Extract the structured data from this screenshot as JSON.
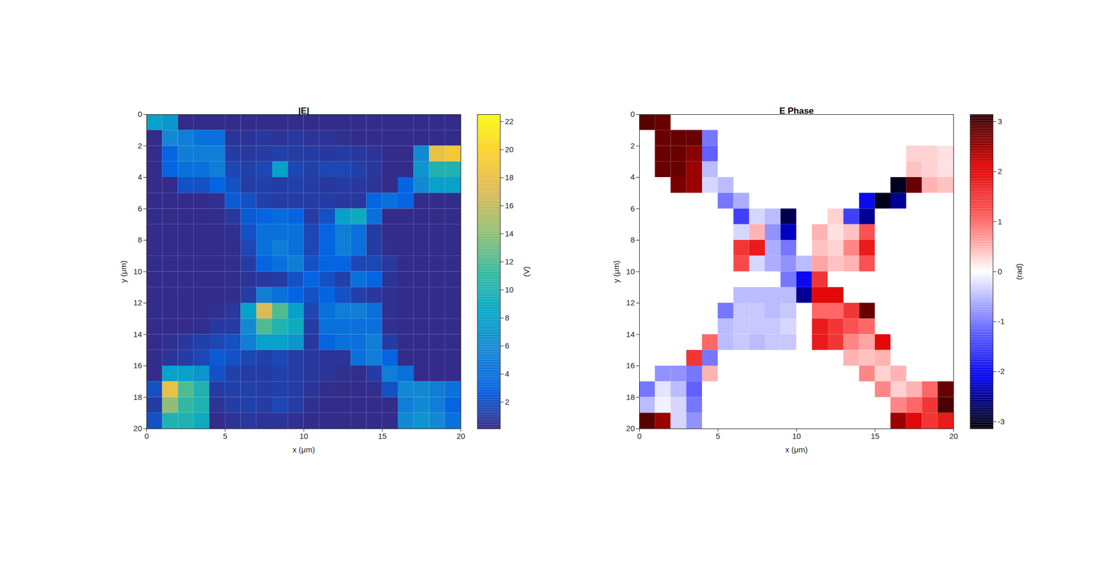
{
  "chart_data": [
    {
      "type": "heatmap",
      "title": "|E|",
      "x_label": "x (μm)",
      "y_label": "y (μm)",
      "xlim": [
        0,
        20
      ],
      "ylim": [
        20,
        0
      ],
      "xticks": [
        0,
        5,
        10,
        15,
        20
      ],
      "yticks": [
        0,
        2,
        4,
        6,
        8,
        10,
        12,
        14,
        16,
        18,
        20
      ],
      "x": [
        0.5,
        1.5,
        2.5,
        3.5,
        4.5,
        5.5,
        6.5,
        7.5,
        8.5,
        9.5,
        10.5,
        11.5,
        12.5,
        13.5,
        14.5,
        15.5,
        16.5,
        17.5,
        18.5,
        19.5
      ],
      "y": [
        0.5,
        1.5,
        2.5,
        3.5,
        4.5,
        5.5,
        6.5,
        7.5,
        8.5,
        9.5,
        10.5,
        11.5,
        12.5,
        13.5,
        14.5,
        15.5,
        16.5,
        17.5,
        18.5,
        19.5
      ],
      "values": [
        [
          8,
          7,
          0.2,
          0.2,
          0.2,
          0.2,
          0.2,
          0.2,
          0.2,
          0.2,
          0.2,
          0.2,
          0.2,
          0.2,
          0.2,
          0.2,
          0.2,
          0.2,
          0.2,
          0.2
        ],
        [
          0.2,
          6,
          5,
          4,
          4,
          0.6,
          0.6,
          0.8,
          0.6,
          0.8,
          0.6,
          0.6,
          0.4,
          0.2,
          0.2,
          0.2,
          0.2,
          0.2,
          0.2,
          0.2
        ],
        [
          0.2,
          3,
          5,
          5,
          5,
          1,
          0.8,
          1,
          1.2,
          1,
          1,
          0.8,
          1,
          0.8,
          0.6,
          0.2,
          0.2,
          6,
          18,
          19
        ],
        [
          0.2,
          3,
          4,
          4,
          5,
          1.5,
          1.2,
          1.5,
          8,
          1.5,
          1.2,
          1.5,
          1.5,
          1.2,
          0.8,
          0.2,
          0.2,
          7,
          10,
          10
        ],
        [
          0.2,
          0.2,
          2,
          2,
          3,
          2,
          1,
          1.2,
          1,
          1.2,
          1,
          0.8,
          1,
          0.8,
          0.6,
          0.2,
          3,
          6,
          8,
          8
        ],
        [
          0.2,
          0.2,
          0.2,
          0.2,
          0.4,
          2.5,
          2,
          1.2,
          1,
          1,
          1,
          1,
          0.8,
          0.8,
          3,
          4,
          3,
          0.2,
          0.2,
          0.2
        ],
        [
          0.2,
          0.2,
          0.2,
          0.2,
          0.3,
          0.8,
          2.5,
          3,
          3.5,
          3,
          1,
          2,
          8,
          9,
          4,
          0.2,
          0.2,
          0.2,
          0.2,
          0.2
        ],
        [
          0.2,
          0.2,
          0.2,
          0.2,
          0.2,
          0.4,
          2,
          4,
          4,
          4,
          1.5,
          3,
          5,
          4,
          1,
          0.2,
          0.2,
          0.2,
          0.2,
          0.2
        ],
        [
          0.2,
          0.2,
          0.2,
          0.2,
          0.2,
          0.3,
          1.5,
          4,
          5,
          4,
          1.5,
          3,
          5,
          4,
          1,
          0.3,
          0.2,
          0.2,
          0.2,
          0.2
        ],
        [
          0.2,
          0.2,
          0.2,
          0.2,
          0.2,
          0.3,
          1,
          3,
          4,
          5,
          2,
          3,
          3,
          1.5,
          1.5,
          0.8,
          0.2,
          0.2,
          0.2,
          0.2
        ],
        [
          0.2,
          0.2,
          0.2,
          0.2,
          0.2,
          0.3,
          0.6,
          0.8,
          1,
          2,
          3,
          2,
          1.2,
          4,
          3,
          0.6,
          0.2,
          0.2,
          0.2,
          0.2
        ],
        [
          0.2,
          0.2,
          0.2,
          0.2,
          0.2,
          0.3,
          1,
          5,
          4,
          3,
          2,
          3,
          2,
          1.2,
          0.8,
          0.4,
          0.2,
          0.2,
          0.2,
          0.2
        ],
        [
          0.2,
          0.2,
          0.2,
          0.2,
          0.4,
          0.8,
          8,
          17,
          12,
          8,
          1.5,
          4,
          5,
          5,
          4,
          0.4,
          0.2,
          0.2,
          0.2,
          0.2
        ],
        [
          0.2,
          0.2,
          0.2,
          0.3,
          0.8,
          1,
          6,
          12,
          10,
          9,
          1,
          4,
          4,
          4,
          4,
          0.4,
          0.2,
          0.2,
          0.2,
          0.2
        ],
        [
          0.2,
          0.4,
          0.8,
          1.2,
          1.5,
          2,
          5,
          8,
          8,
          7,
          0.8,
          3,
          4,
          4,
          5,
          1,
          0.2,
          0.2,
          0.2,
          0.2
        ],
        [
          0.2,
          0.6,
          1,
          1.5,
          2.5,
          2,
          1.5,
          1.2,
          1.5,
          1,
          0.8,
          0.6,
          0.6,
          4,
          5,
          3,
          0.2,
          0.2,
          0.2,
          0.2
        ],
        [
          0.2,
          8,
          8,
          7,
          2,
          1.2,
          1,
          1,
          1.2,
          1,
          0.8,
          0.6,
          0.4,
          0.3,
          1,
          5,
          4,
          0.2,
          0.2,
          0.2
        ],
        [
          2,
          18,
          12,
          10,
          1,
          1.2,
          1.2,
          1,
          1.2,
          1,
          0.6,
          0.3,
          0.2,
          0.2,
          0.3,
          2,
          6,
          6,
          5,
          4
        ],
        [
          1,
          14,
          11,
          10,
          0.6,
          1,
          1.2,
          1,
          1.5,
          1,
          0.4,
          0.2,
          0.2,
          0.2,
          0.2,
          0.2,
          5,
          6,
          5,
          3
        ],
        [
          2,
          10,
          10,
          9,
          0.2,
          0.6,
          0.8,
          0.6,
          0.6,
          0.4,
          0.2,
          0.2,
          0.2,
          0.2,
          0.2,
          0.2,
          6,
          7,
          6,
          4
        ]
      ],
      "colorbar": {
        "label": "(V)",
        "lim": [
          0.1,
          22.5
        ],
        "ticks": [
          2,
          4,
          6,
          8,
          10,
          12,
          14,
          16,
          18,
          20,
          22
        ]
      }
    },
    {
      "type": "heatmap",
      "title": "E Phase",
      "x_label": "x (μm)",
      "y_label": "y (μm)",
      "xlim": [
        0,
        20
      ],
      "ylim": [
        20,
        0
      ],
      "xticks": [
        0,
        5,
        10,
        15,
        20
      ],
      "yticks": [
        0,
        2,
        4,
        6,
        8,
        10,
        12,
        14,
        16,
        18,
        20
      ],
      "x": [
        0.5,
        1.5,
        2.5,
        3.5,
        4.5,
        5.5,
        6.5,
        7.5,
        8.5,
        9.5,
        10.5,
        11.5,
        12.5,
        13.5,
        14.5,
        15.5,
        16.5,
        17.5,
        18.5,
        19.5
      ],
      "y": [
        0.5,
        1.5,
        2.5,
        3.5,
        4.5,
        5.5,
        6.5,
        7.5,
        8.5,
        9.5,
        10.5,
        11.5,
        12.5,
        13.5,
        14.5,
        15.5,
        16.5,
        17.5,
        18.5,
        19.5
      ],
      "values": [
        [
          2.9,
          2.8,
          null,
          null,
          null,
          null,
          null,
          null,
          null,
          null,
          null,
          null,
          null,
          null,
          null,
          null,
          null,
          null,
          null,
          null
        ],
        [
          null,
          2.8,
          2.8,
          2.8,
          -1,
          null,
          null,
          null,
          null,
          null,
          null,
          null,
          null,
          null,
          null,
          null,
          null,
          null,
          null,
          null
        ],
        [
          null,
          2.8,
          2.8,
          2.6,
          -1.2,
          null,
          null,
          null,
          null,
          null,
          null,
          null,
          null,
          null,
          null,
          null,
          null,
          0.3,
          0.3,
          0.2
        ],
        [
          null,
          2.8,
          2.8,
          2.5,
          -0.5,
          null,
          null,
          null,
          null,
          null,
          null,
          null,
          null,
          null,
          null,
          null,
          null,
          0.4,
          0.3,
          0.2
        ],
        [
          null,
          null,
          2.7,
          2.5,
          -0.3,
          -0.5,
          null,
          null,
          null,
          null,
          null,
          null,
          null,
          null,
          null,
          null,
          -3,
          2.8,
          0.5,
          0.4
        ],
        [
          null,
          null,
          null,
          null,
          null,
          -1,
          -0.6,
          null,
          null,
          null,
          null,
          null,
          null,
          null,
          -2,
          -3,
          -2.5,
          null,
          null,
          null
        ],
        [
          null,
          null,
          null,
          null,
          null,
          null,
          -1.5,
          -0.3,
          -0.5,
          -2.8,
          null,
          null,
          0.3,
          -1.5,
          -2.5,
          null,
          null,
          null,
          null,
          null
        ],
        [
          null,
          null,
          null,
          null,
          null,
          null,
          -0.3,
          0.5,
          -0.8,
          -2.3,
          null,
          0.5,
          0.2,
          0.4,
          1.2,
          null,
          null,
          null,
          null,
          null
        ],
        [
          null,
          null,
          null,
          null,
          null,
          null,
          1.5,
          1.8,
          -0.6,
          -1,
          null,
          0.4,
          0.3,
          0.8,
          1.8,
          null,
          null,
          null,
          null,
          null
        ],
        [
          null,
          null,
          null,
          null,
          null,
          null,
          1.3,
          -0.3,
          -0.6,
          -0.8,
          -0.5,
          0.6,
          0.4,
          0.5,
          1.2,
          null,
          null,
          null,
          null,
          null
        ],
        [
          null,
          null,
          null,
          null,
          null,
          null,
          null,
          null,
          null,
          -1,
          -2,
          1.5,
          null,
          null,
          null,
          null,
          null,
          null,
          null,
          null
        ],
        [
          null,
          null,
          null,
          null,
          null,
          null,
          -0.5,
          -0.5,
          -0.5,
          -0.5,
          -2.5,
          2,
          2,
          null,
          null,
          null,
          null,
          null,
          null,
          null
        ],
        [
          null,
          null,
          null,
          null,
          null,
          -1,
          -0.4,
          -0.4,
          -0.5,
          -0.4,
          null,
          1,
          1,
          1.5,
          2.8,
          null,
          null,
          null,
          null,
          null
        ],
        [
          null,
          null,
          null,
          null,
          null,
          -0.5,
          -0.4,
          -0.4,
          -0.4,
          -0.3,
          null,
          1.8,
          1.5,
          1.2,
          1,
          null,
          null,
          null,
          null,
          null
        ],
        [
          null,
          null,
          null,
          null,
          1,
          -0.5,
          -0.4,
          -0.5,
          -0.4,
          -0.4,
          null,
          1.8,
          1.5,
          0.8,
          0.6,
          2,
          null,
          null,
          null,
          null
        ],
        [
          null,
          null,
          null,
          1.5,
          -1,
          null,
          null,
          null,
          null,
          null,
          null,
          null,
          null,
          0.5,
          0.4,
          0.5,
          null,
          null,
          null,
          null
        ],
        [
          null,
          -0.8,
          -0.8,
          -1,
          0.5,
          null,
          null,
          null,
          null,
          null,
          null,
          null,
          null,
          null,
          0.8,
          0.3,
          0.5,
          null,
          null,
          null
        ],
        [
          -1,
          -0.2,
          -0.5,
          -1.2,
          null,
          null,
          null,
          null,
          null,
          null,
          null,
          null,
          null,
          null,
          null,
          0.8,
          0.3,
          0.5,
          1,
          2.8
        ],
        [
          -0.5,
          -0.1,
          -0.3,
          -1,
          null,
          null,
          null,
          null,
          null,
          null,
          null,
          null,
          null,
          null,
          null,
          null,
          0.8,
          1,
          1.5,
          3
        ],
        [
          2.9,
          2.5,
          -0.3,
          -0.8,
          null,
          null,
          null,
          null,
          null,
          null,
          null,
          null,
          null,
          null,
          null,
          null,
          2.5,
          2,
          1.5,
          1.8
        ]
      ],
      "colorbar": {
        "label": "(rad)",
        "lim": [
          -3.1416,
          3.1416
        ],
        "ticks": [
          -3,
          -2,
          -1,
          0,
          1,
          2,
          3
        ]
      }
    }
  ]
}
